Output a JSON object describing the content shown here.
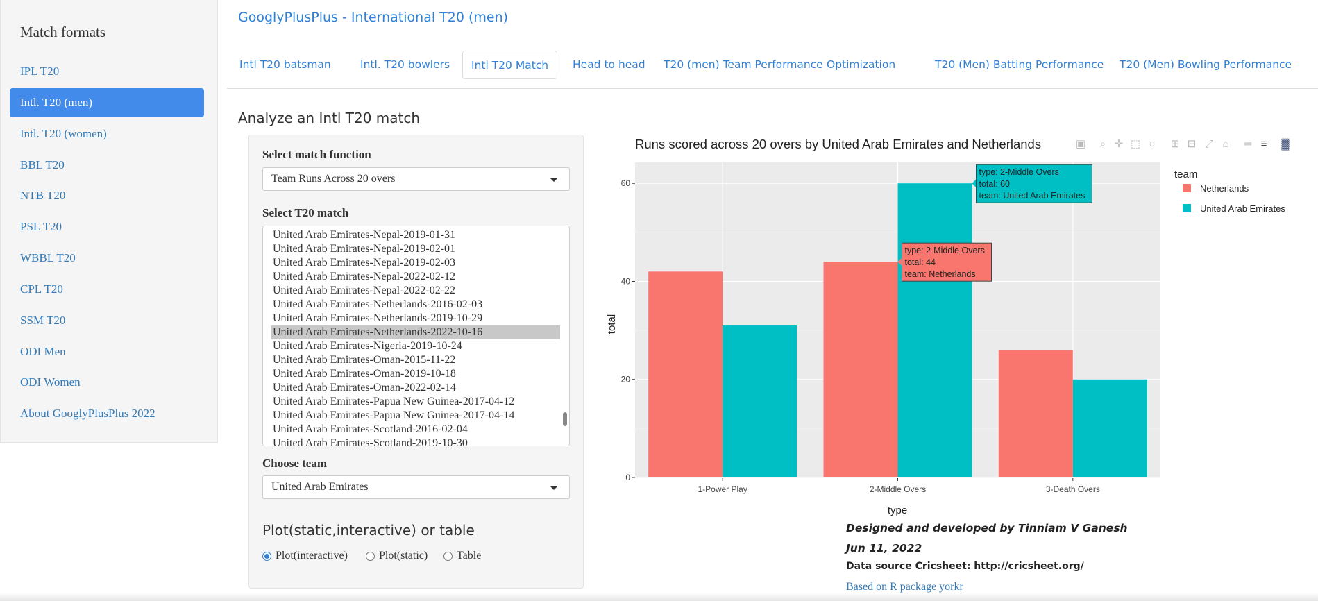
{
  "sidebar": {
    "title": "Match formats",
    "items": [
      {
        "label": "IPL T20",
        "active": false
      },
      {
        "label": "Intl. T20 (men)",
        "active": true
      },
      {
        "label": "Intl. T20 (women)",
        "active": false
      },
      {
        "label": "BBL T20",
        "active": false
      },
      {
        "label": "NTB T20",
        "active": false
      },
      {
        "label": "PSL T20",
        "active": false
      },
      {
        "label": "WBBL T20",
        "active": false
      },
      {
        "label": "CPL T20",
        "active": false
      },
      {
        "label": "SSM T20",
        "active": false
      },
      {
        "label": "ODI Men",
        "active": false
      },
      {
        "label": "ODI Women",
        "active": false
      },
      {
        "label": "About GooglyPlusPlus 2022",
        "active": false
      }
    ]
  },
  "header": {
    "title": "GooglyPlusPlus - International T20 (men)"
  },
  "tabs": [
    {
      "label": "Intl T20 batsman",
      "active": false
    },
    {
      "label": "Intl. T20 bowlers",
      "active": false
    },
    {
      "label": "Intl T20 Match",
      "active": true
    },
    {
      "label": "Head to head",
      "active": false
    },
    {
      "label": "T20 (men) Team Performance",
      "active": false
    },
    {
      "label": "Optimization",
      "active": false
    },
    {
      "label": "T20 (Men) Batting Performance",
      "active": false
    },
    {
      "label": "T20 (Men) Bowling Performance",
      "active": false
    }
  ],
  "main": {
    "heading": "Analyze an Intl T20 match",
    "function_label": "Select match function",
    "function_value": "Team Runs Across 20 overs",
    "match_label": "Select T20 match",
    "matches": [
      "United Arab Emirates-Nepal-2019-01-31",
      "United Arab Emirates-Nepal-2019-02-01",
      "United Arab Emirates-Nepal-2019-02-03",
      "United Arab Emirates-Nepal-2022-02-12",
      "United Arab Emirates-Nepal-2022-02-22",
      "United Arab Emirates-Netherlands-2016-02-03",
      "United Arab Emirates-Netherlands-2019-10-29",
      "United Arab Emirates-Netherlands-2022-10-16",
      "United Arab Emirates-Nigeria-2019-10-24",
      "United Arab Emirates-Oman-2015-11-22",
      "United Arab Emirates-Oman-2019-10-18",
      "United Arab Emirates-Oman-2022-02-14",
      "United Arab Emirates-Papua New Guinea-2017-04-12",
      "United Arab Emirates-Papua New Guinea-2017-04-14",
      "United Arab Emirates-Scotland-2016-02-04",
      "United Arab Emirates-Scotland-2019-10-30"
    ],
    "selected_match": "United Arab Emirates-Netherlands-2022-10-16",
    "team_label": "Choose team",
    "team_value": "United Arab Emirates",
    "plot_heading": "Plot(static,interactive) or table",
    "plot_options": [
      {
        "label": "Plot(interactive)",
        "checked": true
      },
      {
        "label": "Plot(static)",
        "checked": false
      },
      {
        "label": "Table",
        "checked": false
      }
    ]
  },
  "chart_data": {
    "type": "bar",
    "title": "Runs scored across 20 overs by  United Arab Emirates and Netherlands",
    "xlabel": "type",
    "ylabel": "total",
    "categories": [
      "1-Power Play",
      "2-Middle Overs",
      "3-Death Overs"
    ],
    "series": [
      {
        "name": "Netherlands",
        "values": [
          42,
          44,
          26
        ],
        "color": "#f8766d"
      },
      {
        "name": "United Arab Emirates",
        "values": [
          31,
          60,
          20
        ],
        "color": "#00bfc4"
      }
    ],
    "ylim": [
      0,
      63
    ],
    "yticks": [
      0,
      20,
      40,
      60
    ],
    "legend_title": "team",
    "legend_position": "right",
    "plot_background": "#ebebeb",
    "grid": true,
    "hover_tooltips": [
      {
        "series": 1,
        "category": 1,
        "lines": [
          "type: 2-Middle Overs",
          "total: 60",
          "team: United Arab Emirates"
        ]
      },
      {
        "series": 0,
        "category": 1,
        "lines": [
          "type: 2-Middle Overs",
          "total: 44",
          "team: Netherlands"
        ]
      }
    ]
  },
  "modebar_icons": [
    "camera-icon",
    "zoom-icon",
    "pan-icon",
    "box-select-icon",
    "lasso-icon",
    "zoom-in-icon",
    "zoom-out-icon",
    "autoscale-icon",
    "home-icon",
    "spike-lines-icon",
    "compare-hover-icon",
    "plotly-logo-icon"
  ],
  "footer": {
    "credit": "Designed and developed by Tinniam V Ganesh",
    "date": "Jun 11, 2022",
    "source": "Data source Cricsheet: http://cricsheet.org/",
    "link": "Based on R package yorkr"
  }
}
